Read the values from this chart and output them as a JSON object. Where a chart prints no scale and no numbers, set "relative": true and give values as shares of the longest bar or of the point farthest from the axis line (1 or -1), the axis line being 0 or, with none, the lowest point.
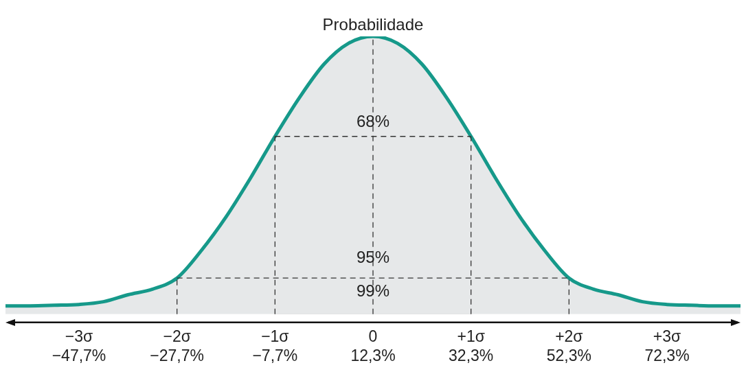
{
  "chart_data": {
    "type": "area",
    "ylabel": "Probabilidade",
    "relative": true,
    "color": "#16998a",
    "categories": [
      null,
      null,
      null,
      "−3σ\n−47,7%",
      null,
      null,
      null,
      "−2σ\n−27,7%",
      null,
      null,
      null,
      "−1σ\n−7,7%",
      null,
      null,
      null,
      "0\n12,3%",
      null,
      null,
      null,
      "+1σ\n32,3%",
      null,
      null,
      null,
      "+2σ\n52,3%",
      null,
      null,
      null,
      "+3σ\n72,3%",
      null,
      null,
      null
    ],
    "values": [
      0.03,
      0.03,
      0.032,
      0.035,
      0.045,
      0.07,
      0.09,
      0.13,
      0.23,
      0.35,
      0.49,
      0.64,
      0.78,
      0.9,
      0.975,
      1,
      0.975,
      0.9,
      0.78,
      0.64,
      0.49,
      0.35,
      0.23,
      0.13,
      0.09,
      0.07,
      0.045,
      0.035,
      0.032,
      0.03,
      0.03
    ],
    "bands": [
      {
        "axis": "x",
        "from": "−1σ\n−7,7%",
        "to": "+1σ\n32,3%",
        "color": "#d2d3d5"
      }
    ],
    "ref_lines": [
      {
        "axis": "x",
        "value": "−2σ\n−27,7%",
        "line_style": "dashed"
      },
      {
        "axis": "x",
        "value": "−1σ\n−7,7%",
        "line_style": "dashed"
      },
      {
        "axis": "x",
        "value": "0\n12,3%",
        "line_style": "dashed"
      },
      {
        "axis": "x",
        "value": "+1σ\n32,3%",
        "line_style": "dashed"
      },
      {
        "axis": "x",
        "value": "+2σ\n52,3%",
        "line_style": "dashed"
      }
    ],
    "annotations": [
      {
        "text": "68%",
        "x": "0\n12,3%",
        "y": 0.69
      },
      {
        "text": "95%",
        "x": "0\n12,3%",
        "y": 0.2
      },
      {
        "text": "99%",
        "x": "0\n12,3%",
        "y": 0.08
      }
    ],
    "grid": false,
    "legend": false
  }
}
